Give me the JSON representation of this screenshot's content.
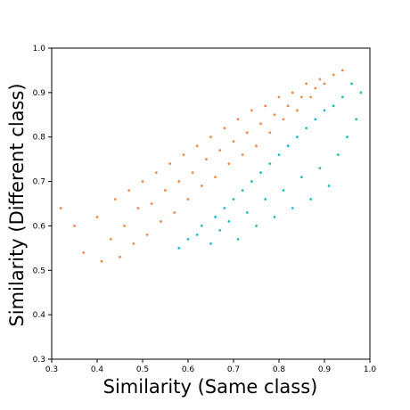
{
  "chart_data": {
    "type": "scatter",
    "title": "",
    "xlabel": "Similarity (Same class)",
    "ylabel": "Similarity (Different class)",
    "xlim": [
      0.3,
      1.0
    ],
    "ylim": [
      0.3,
      1.0
    ],
    "xticks": [
      "0.3",
      "0.4",
      "0.5",
      "0.6",
      "0.7",
      "0.8",
      "0.9",
      "1.0"
    ],
    "yticks": [
      "0.3",
      "0.4",
      "0.5",
      "0.6",
      "0.7",
      "0.8",
      "0.9",
      "1.0"
    ],
    "grid": false,
    "legend": "none",
    "series": [
      {
        "color": "#f08a4b",
        "description": "points above the diagonal (different-class similarity > same-class similarity)",
        "points": [
          [
            0.32,
            0.64
          ],
          [
            0.35,
            0.6
          ],
          [
            0.37,
            0.54
          ],
          [
            0.4,
            0.62
          ],
          [
            0.41,
            0.52
          ],
          [
            0.43,
            0.57
          ],
          [
            0.44,
            0.66
          ],
          [
            0.45,
            0.53
          ],
          [
            0.46,
            0.6
          ],
          [
            0.47,
            0.68
          ],
          [
            0.48,
            0.56
          ],
          [
            0.49,
            0.64
          ],
          [
            0.5,
            0.7
          ],
          [
            0.51,
            0.58
          ],
          [
            0.52,
            0.65
          ],
          [
            0.53,
            0.72
          ],
          [
            0.54,
            0.61
          ],
          [
            0.55,
            0.68
          ],
          [
            0.56,
            0.74
          ],
          [
            0.57,
            0.63
          ],
          [
            0.58,
            0.7
          ],
          [
            0.59,
            0.76
          ],
          [
            0.6,
            0.66
          ],
          [
            0.61,
            0.72
          ],
          [
            0.62,
            0.78
          ],
          [
            0.63,
            0.69
          ],
          [
            0.64,
            0.75
          ],
          [
            0.65,
            0.8
          ],
          [
            0.66,
            0.71
          ],
          [
            0.67,
            0.77
          ],
          [
            0.68,
            0.82
          ],
          [
            0.69,
            0.74
          ],
          [
            0.7,
            0.79
          ],
          [
            0.71,
            0.84
          ],
          [
            0.72,
            0.76
          ],
          [
            0.73,
            0.81
          ],
          [
            0.74,
            0.86
          ],
          [
            0.75,
            0.78
          ],
          [
            0.76,
            0.83
          ],
          [
            0.77,
            0.87
          ],
          [
            0.78,
            0.81
          ],
          [
            0.79,
            0.85
          ],
          [
            0.8,
            0.89
          ],
          [
            0.81,
            0.84
          ],
          [
            0.82,
            0.87
          ],
          [
            0.83,
            0.9
          ],
          [
            0.84,
            0.86
          ],
          [
            0.85,
            0.89
          ],
          [
            0.86,
            0.92
          ],
          [
            0.87,
            0.89
          ],
          [
            0.88,
            0.91
          ],
          [
            0.89,
            0.93
          ],
          [
            0.9,
            0.92
          ],
          [
            0.92,
            0.94
          ],
          [
            0.94,
            0.95
          ]
        ]
      },
      {
        "color": "#1fbfbf",
        "description": "points below the diagonal (different-class similarity < same-class similarity)",
        "points": [
          [
            0.58,
            0.55
          ],
          [
            0.6,
            0.57
          ],
          [
            0.62,
            0.58
          ],
          [
            0.63,
            0.6
          ],
          [
            0.65,
            0.56
          ],
          [
            0.66,
            0.62
          ],
          [
            0.67,
            0.59
          ],
          [
            0.68,
            0.64
          ],
          [
            0.69,
            0.61
          ],
          [
            0.7,
            0.66
          ],
          [
            0.71,
            0.57
          ],
          [
            0.72,
            0.68
          ],
          [
            0.73,
            0.63
          ],
          [
            0.74,
            0.7
          ],
          [
            0.75,
            0.6
          ],
          [
            0.76,
            0.72
          ],
          [
            0.77,
            0.66
          ],
          [
            0.78,
            0.74
          ],
          [
            0.79,
            0.62
          ],
          [
            0.8,
            0.76
          ],
          [
            0.81,
            0.68
          ],
          [
            0.82,
            0.78
          ],
          [
            0.83,
            0.64
          ],
          [
            0.84,
            0.8
          ],
          [
            0.85,
            0.71
          ],
          [
            0.86,
            0.82
          ],
          [
            0.87,
            0.66
          ],
          [
            0.88,
            0.84
          ],
          [
            0.89,
            0.73
          ],
          [
            0.9,
            0.86
          ],
          [
            0.91,
            0.69
          ],
          [
            0.92,
            0.87
          ],
          [
            0.93,
            0.76
          ],
          [
            0.94,
            0.89
          ],
          [
            0.95,
            0.8
          ],
          [
            0.96,
            0.92
          ],
          [
            0.97,
            0.84
          ],
          [
            0.98,
            0.9
          ]
        ]
      }
    ]
  }
}
